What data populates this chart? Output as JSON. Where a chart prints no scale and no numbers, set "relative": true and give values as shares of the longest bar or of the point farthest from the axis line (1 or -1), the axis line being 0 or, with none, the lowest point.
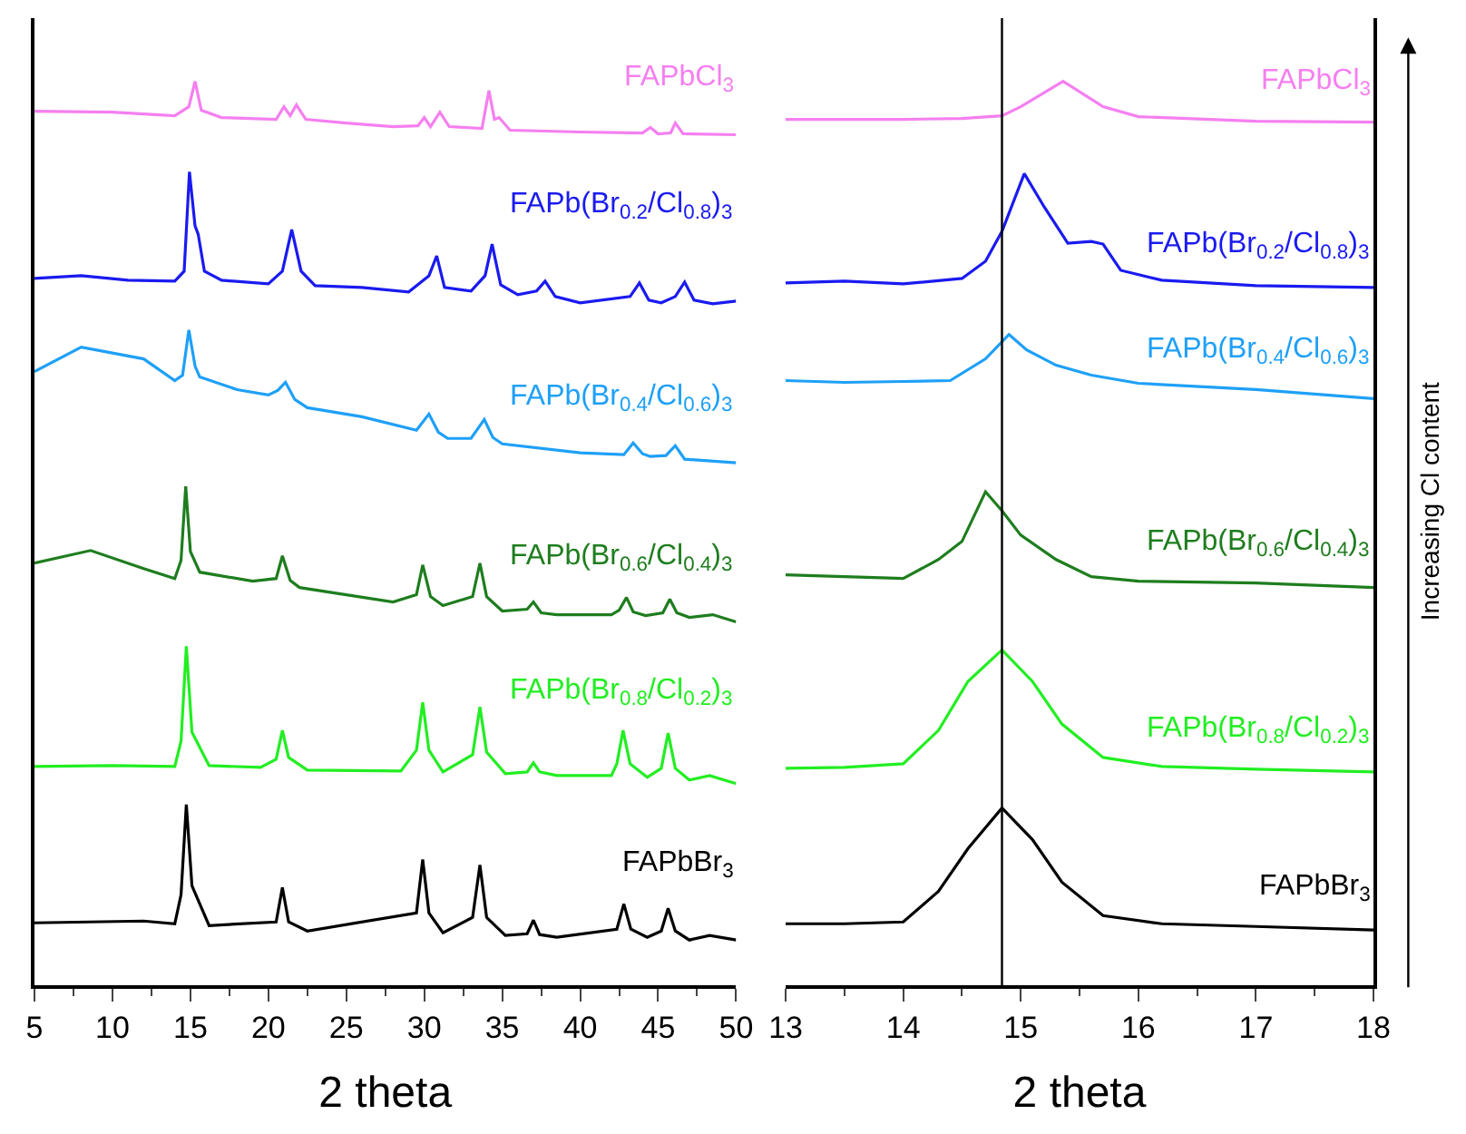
{
  "chart_data": [
    {
      "type": "line",
      "xlabel": "2 theta",
      "xlim": [
        5,
        50
      ],
      "xticks": [
        5,
        10,
        15,
        20,
        25,
        30,
        35,
        40,
        45,
        50
      ],
      "relative": true,
      "tick_labels": "x",
      "legend": false,
      "line_style": "solid",
      "marker": "none",
      "series": [
        {
          "name": "FAPbCl$_{3}$",
          "color": "#f57ff0",
          "x": [
            5,
            10,
            14,
            14.9,
            15.3,
            15.7,
            17,
            20.5,
            21.0,
            21.4,
            21.8,
            22.4,
            25,
            28,
            29.6,
            30.0,
            30.4,
            31.0,
            31.6,
            33.7,
            34.15,
            34.5,
            34.8,
            35.5,
            40,
            44,
            44.5,
            45,
            45.8,
            46.1,
            46.6,
            50
          ],
          "values": [
            0.967,
            0.966,
            0.962,
            0.972,
            1.0,
            0.968,
            0.96,
            0.958,
            0.972,
            0.962,
            0.974,
            0.958,
            0.954,
            0.95,
            0.951,
            0.96,
            0.95,
            0.966,
            0.95,
            0.948,
            0.99,
            0.958,
            0.96,
            0.946,
            0.944,
            0.943,
            0.949,
            0.942,
            0.943,
            0.954,
            0.942,
            0.941
          ]
        },
        {
          "name": "FAPb(Br$_{0.2}$/Cl$_{0.8}$)$_{3}$",
          "color": "#1a1af0",
          "x": [
            5,
            8,
            11,
            14,
            14.6,
            14.94,
            15.3,
            15.5,
            15.9,
            17,
            20,
            20.9,
            21.5,
            22.1,
            23,
            26,
            29,
            30.3,
            30.8,
            31.3,
            33,
            33.9,
            34.35,
            34.9,
            36,
            37.2,
            37.75,
            38.4,
            40,
            43.2,
            43.8,
            44.4,
            45.2,
            46.1,
            46.7,
            47.3,
            48.5,
            50
          ],
          "values": [
            0.782,
            0.785,
            0.78,
            0.779,
            0.79,
            0.9,
            0.84,
            0.831,
            0.79,
            0.78,
            0.776,
            0.79,
            0.836,
            0.79,
            0.774,
            0.772,
            0.767,
            0.785,
            0.807,
            0.772,
            0.768,
            0.785,
            0.82,
            0.775,
            0.764,
            0.768,
            0.779,
            0.762,
            0.755,
            0.762,
            0.777,
            0.758,
            0.755,
            0.762,
            0.778,
            0.758,
            0.754,
            0.757
          ]
        },
        {
          "name": "FAPb(Br$_{0.4}$/Cl$_{0.6}$)$_{3}$",
          "color": "#1ea0f8",
          "x": [
            5,
            8,
            12,
            14,
            14.5,
            14.9,
            15.3,
            15.6,
            18,
            20,
            20.6,
            21.1,
            21.7,
            22.5,
            26,
            29.5,
            30.3,
            30.9,
            31.5,
            33,
            33.85,
            34.4,
            35,
            40,
            42.8,
            43.4,
            44,
            44.5,
            45.5,
            46.1,
            46.7,
            50
          ],
          "values": [
            0.679,
            0.706,
            0.693,
            0.669,
            0.675,
            0.725,
            0.685,
            0.673,
            0.659,
            0.653,
            0.658,
            0.667,
            0.648,
            0.639,
            0.629,
            0.614,
            0.632,
            0.612,
            0.605,
            0.605,
            0.626,
            0.606,
            0.599,
            0.589,
            0.587,
            0.6,
            0.588,
            0.585,
            0.586,
            0.597,
            0.582,
            0.578
          ]
        },
        {
          "name": "FAPb(Br$_{0.6}$/Cl$_{0.4}$)$_{3}$",
          "color": "#1e7d1e",
          "x": [
            5,
            8.6,
            12,
            14,
            14.4,
            14.7,
            15.0,
            15.6,
            19,
            20.5,
            20.9,
            21.4,
            22,
            28,
            29.5,
            29.9,
            30.4,
            31.2,
            33.1,
            33.57,
            34,
            35,
            36.6,
            37.0,
            37.5,
            38.5,
            42,
            42.5,
            42.97,
            43.4,
            44.2,
            45.3,
            45.75,
            46.2,
            47,
            48.5,
            50
          ],
          "values": [
            0.467,
            0.481,
            0.461,
            0.45,
            0.47,
            0.552,
            0.48,
            0.457,
            0.447,
            0.45,
            0.475,
            0.448,
            0.44,
            0.424,
            0.432,
            0.465,
            0.43,
            0.42,
            0.43,
            0.467,
            0.43,
            0.414,
            0.416,
            0.424,
            0.412,
            0.41,
            0.41,
            0.415,
            0.429,
            0.413,
            0.409,
            0.412,
            0.427,
            0.412,
            0.407,
            0.41,
            0.402
          ]
        },
        {
          "name": "FAPb(Br$_{0.8}$/Cl$_{0.2}$)$_{3}$",
          "color": "#22ee22",
          "x": [
            5,
            10,
            14,
            14.4,
            14.74,
            15.1,
            16.2,
            19.5,
            20.5,
            20.9,
            21.3,
            22.5,
            28.5,
            29.5,
            29.9,
            30.3,
            31.2,
            33.1,
            33.57,
            34,
            35.2,
            36.6,
            37,
            37.4,
            38.5,
            42,
            42.35,
            42.75,
            43.2,
            44.3,
            45.2,
            45.64,
            46.1,
            47,
            48.3,
            50
          ],
          "values": [
            0.242,
            0.243,
            0.242,
            0.27,
            0.375,
            0.28,
            0.243,
            0.241,
            0.25,
            0.282,
            0.252,
            0.238,
            0.237,
            0.26,
            0.313,
            0.26,
            0.236,
            0.255,
            0.308,
            0.258,
            0.234,
            0.236,
            0.246,
            0.236,
            0.232,
            0.232,
            0.245,
            0.282,
            0.245,
            0.23,
            0.24,
            0.279,
            0.24,
            0.227,
            0.232,
            0.223
          ]
        },
        {
          "name": "FAPbBr$_{3}$",
          "color": "#000000",
          "x": [
            5,
            12,
            14,
            14.4,
            14.74,
            15.1,
            16.2,
            20.5,
            20.9,
            21.3,
            22.5,
            29.5,
            29.9,
            30.3,
            31.2,
            33.1,
            33.57,
            34,
            35.2,
            36.6,
            37,
            37.4,
            38.5,
            42.35,
            42.8,
            43.25,
            44.3,
            45.2,
            45.64,
            46.1,
            47,
            48.3,
            50
          ],
          "values": [
            0.069,
            0.071,
            0.068,
            0.1,
            0.2,
            0.11,
            0.066,
            0.07,
            0.108,
            0.07,
            0.06,
            0.08,
            0.139,
            0.08,
            0.058,
            0.075,
            0.133,
            0.075,
            0.055,
            0.057,
            0.072,
            0.056,
            0.053,
            0.062,
            0.09,
            0.062,
            0.053,
            0.06,
            0.085,
            0.06,
            0.05,
            0.055,
            0.05
          ]
        }
      ]
    },
    {
      "type": "line",
      "xlabel": "2 theta",
      "xlim": [
        13,
        18
      ],
      "xticks": [
        13,
        14,
        15,
        16,
        17,
        18
      ],
      "relative": true,
      "tick_labels": "x",
      "legend": false,
      "line_style": "solid",
      "marker": "none",
      "ref_lines": [
        {
          "axis": "x",
          "value": 14.84,
          "color": "#000000"
        }
      ],
      "annotations": [
        "Increasing Cl content"
      ],
      "series": [
        {
          "name": "FAPbCl$_{3}$",
          "color": "#f57ff0",
          "x": [
            13,
            14,
            14.5,
            14.84,
            15.0,
            15.36,
            15.7,
            16,
            17,
            18
          ],
          "values": [
            0.958,
            0.958,
            0.959,
            0.962,
            0.972,
            1.0,
            0.972,
            0.961,
            0.956,
            0.955
          ]
        },
        {
          "name": "FAPb(Br$_{0.2}$/Cl$_{0.8}$)$_{3}$",
          "color": "#1a1af0",
          "x": [
            13,
            13.5,
            14,
            14.5,
            14.7,
            14.84,
            15.03,
            15.2,
            15.4,
            15.6,
            15.7,
            15.85,
            16.2,
            17,
            18
          ],
          "values": [
            0.777,
            0.779,
            0.776,
            0.782,
            0.801,
            0.834,
            0.898,
            0.861,
            0.821,
            0.823,
            0.82,
            0.791,
            0.78,
            0.774,
            0.772
          ]
        },
        {
          "name": "FAPb(Br$_{0.4}$/Cl$_{0.6}$)$_{3}$",
          "color": "#1ea0f8",
          "x": [
            13,
            13.5,
            14,
            14.4,
            14.7,
            14.9,
            15.05,
            15.3,
            15.6,
            16,
            17,
            18
          ],
          "values": [
            0.669,
            0.667,
            0.668,
            0.669,
            0.693,
            0.72,
            0.703,
            0.686,
            0.675,
            0.666,
            0.659,
            0.649
          ]
        },
        {
          "name": "FAPb(Br$_{0.6}$/Cl$_{0.4}$)$_{3}$",
          "color": "#1e7d1e",
          "x": [
            13,
            13.5,
            14,
            14.3,
            14.5,
            14.7,
            14.84,
            15,
            15.3,
            15.6,
            16,
            17,
            18
          ],
          "values": [
            0.454,
            0.452,
            0.45,
            0.471,
            0.491,
            0.546,
            0.525,
            0.498,
            0.471,
            0.452,
            0.447,
            0.445,
            0.44
          ]
        },
        {
          "name": "FAPb(Br$_{0.8}$/Cl$_{0.2}$)$_{3}$",
          "color": "#22ee22",
          "x": [
            13,
            13.5,
            14,
            14.3,
            14.55,
            14.84,
            15.1,
            15.35,
            15.7,
            16.2,
            17,
            18
          ],
          "values": [
            0.24,
            0.241,
            0.245,
            0.282,
            0.336,
            0.371,
            0.336,
            0.289,
            0.252,
            0.242,
            0.239,
            0.236
          ]
        },
        {
          "name": "FAPbBr$_{3}$",
          "color": "#000000",
          "x": [
            13,
            13.5,
            14,
            14.3,
            14.55,
            14.84,
            15.1,
            15.35,
            15.7,
            16.2,
            17,
            18
          ],
          "values": [
            0.068,
            0.068,
            0.07,
            0.104,
            0.151,
            0.196,
            0.161,
            0.114,
            0.077,
            0.068,
            0.065,
            0.061
          ]
        }
      ]
    }
  ]
}
